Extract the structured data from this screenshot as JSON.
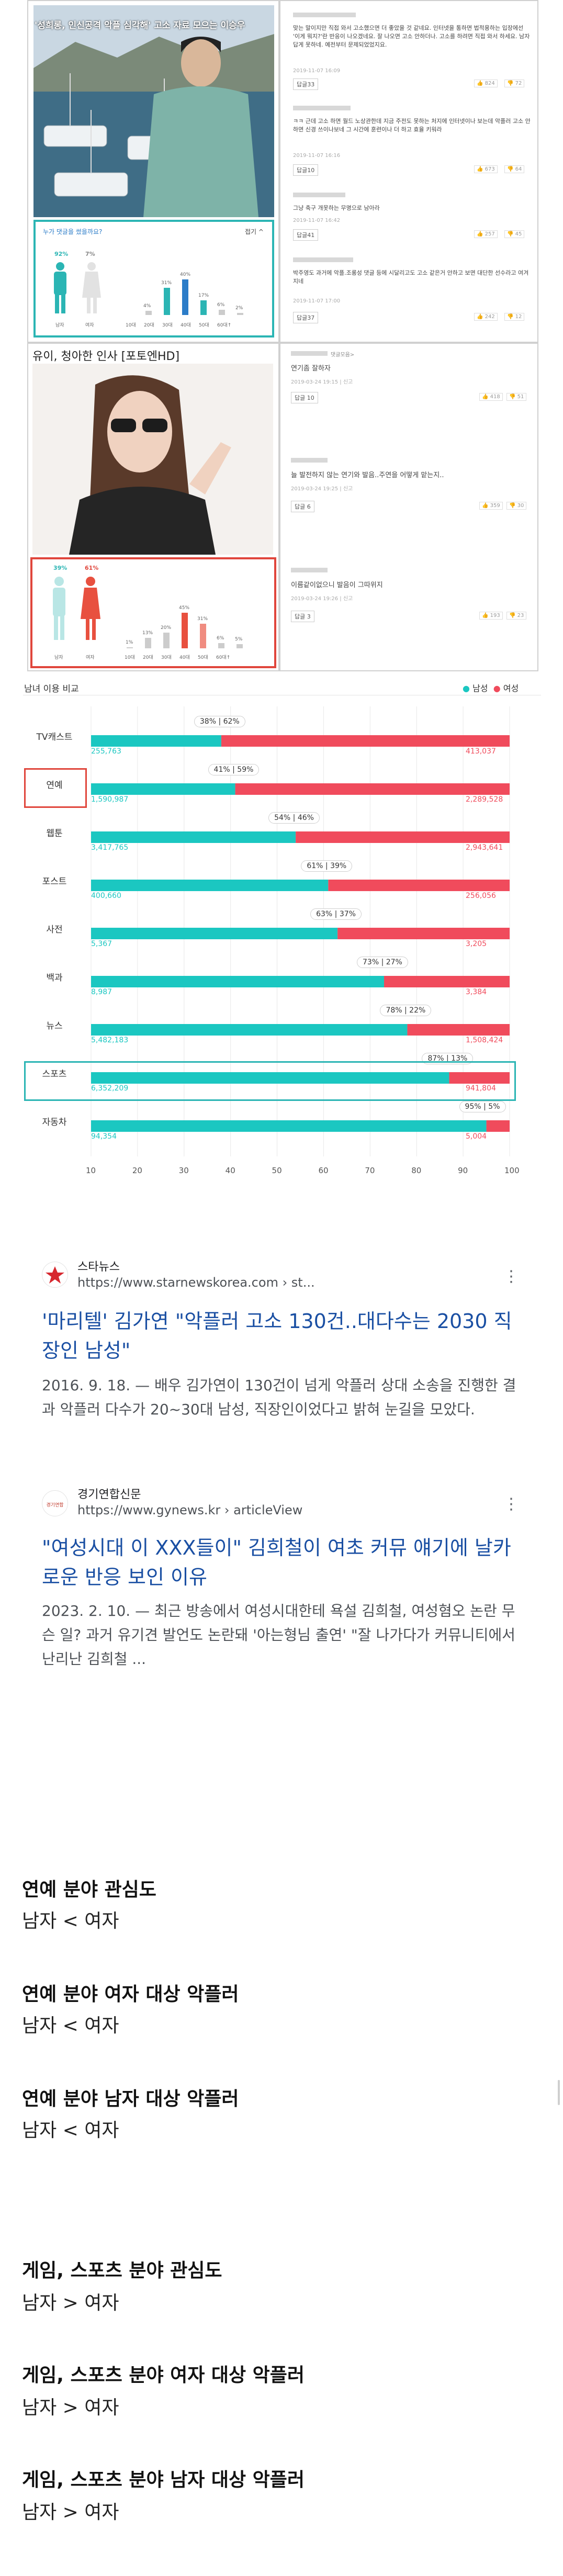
{
  "collage": {
    "news1_title": "'성희롱, 인신공격 악플 심각해' 고소 자료 모으는 이승우",
    "news1_poll_question": "누가 댓글을 썼을까요?",
    "news1_poll_more": "접기 ^",
    "news1_poll": {
      "male_pct": "92%",
      "female_pct": "7%",
      "age_pcts": [
        "",
        "4%",
        "31%",
        "40%",
        "17%",
        "6%",
        "2%"
      ],
      "age_labels": [
        "남자",
        "여자",
        "10대",
        "20대",
        "30대",
        "40대",
        "50대",
        "60대↑"
      ]
    },
    "news1_comments": [
      {
        "text": "맞는 말이지만 직접 와서 고소했으면 더 좋았을 것 같네요. 인터넷을 통하면 법적용하는 입장에선 '이게 뭐지?'란 반응이 나오겠네요. 잘 나오면 고소 안하더나. 고소를 하려면 직접 와서 하세요. 남자답게 못하네. 예전부터 문제되었었지요.",
        "date": "2019-11-07 16:09",
        "up": "824",
        "down": "72"
      },
      {
        "text": "ㅋㅋ 근데 고소 하면 월드 노상관한데 지금 주전도 못하는 처지에 인터넷이나 보는데 악플러 고소 안하면 신경 쓰이나보네 그 시간에 훈련이나 더 하고 효율 키워라",
        "date": "2019-11-07 16:16",
        "up": "673",
        "down": "64"
      },
      {
        "text": "그냥 축구 개못하는 무명으로 남아라",
        "date": "2019-11-07 16:42",
        "up": "257",
        "down": "45"
      },
      {
        "text": "박주영도 과거에 악플.조롱성 댓글 등에 시달리고도 고소 같은거 안하고 보면 대단한 선수라고 여겨지네",
        "date": "2019-11-07 17:00",
        "up": "242",
        "down": "12"
      }
    ],
    "news1_comment_labels": [
      "답글33",
      "답글10",
      "답글41",
      "답글37"
    ],
    "news2_title": "유이, 청아한 인사 [포토엔HD]",
    "news2_poll": {
      "male_pct": "39%",
      "female_pct": "61%",
      "age_pcts": [
        "1%",
        "13%",
        "20%",
        "45%",
        "31%",
        "6%",
        "5%"
      ],
      "age_labels": [
        "남자",
        "여자",
        "10대",
        "20대",
        "30대",
        "40대",
        "50대",
        "60대↑"
      ]
    },
    "news2_comments": [
      {
        "text": "연기좀 잘하자",
        "date": "2019-03-24 19:15",
        "report": "신고",
        "reply": "답글 10",
        "up": "418",
        "down": "51"
      },
      {
        "text": "늘 발전하지 않는 연기와 발음..주연을 어떻게 맡는지..",
        "date": "2019-03-24 19:25",
        "report": "신고",
        "reply": "답글 6",
        "up": "359",
        "down": "30"
      },
      {
        "text": "이름같이없으니 발음이 그따위지",
        "date": "2019-03-24 19:26",
        "report": "신고",
        "reply": "답글 3",
        "up": "193",
        "down": "23"
      }
    ],
    "news2_header": "댓글모음>"
  },
  "chart_data": {
    "type": "bar",
    "title": "남녀 이용 비교",
    "legend": [
      {
        "name": "남성",
        "color": "#1bc7c1"
      },
      {
        "name": "여성",
        "color": "#f04b5c"
      }
    ],
    "legend_position": "top-right",
    "categories": [
      "TV캐스트",
      "연예",
      "웹툰",
      "포스트",
      "사전",
      "백과",
      "뉴스",
      "스포츠",
      "자동차"
    ],
    "male_ratio": [
      38,
      41,
      54,
      61,
      63,
      73,
      78,
      87,
      95
    ],
    "female_ratio": [
      62,
      59,
      46,
      39,
      37,
      27,
      22,
      13,
      5
    ],
    "ratio_labels": [
      "38%62%",
      "41%59%",
      "54%46%",
      "61%39%",
      "63%37%",
      "73%27%",
      "78%22%",
      "87%13%",
      "95%5%"
    ],
    "male_counts": [
      "255,763",
      "1,590,987",
      "3,417,765",
      "400,660",
      "5,367",
      "8,987",
      "5,482,183",
      "6,352,209",
      "94,354"
    ],
    "female_counts": [
      "413,037",
      "2,289,528",
      "2,943,641",
      "256,056",
      "3,205",
      "3,384",
      "1,508,424",
      "941,804",
      "5,004"
    ],
    "x_ticks": [
      "10",
      "20",
      "30",
      "40",
      "50",
      "60",
      "70",
      "80",
      "90",
      "100"
    ],
    "xlim": [
      10,
      100
    ],
    "highlight_red": "연예",
    "highlight_teal": "스포츠",
    "colors": {
      "male": "#1bc7c1",
      "female": "#f04b5c"
    }
  },
  "results": [
    {
      "source": "스타뉴스",
      "url": "https://www.starnewskorea.com › st...",
      "title": "'마리텔' 김가연 \"악플러 고소 130건..대다수는 2030 직장인 남성\"",
      "snippet": "2016. 9. 18. — 배우 김가연이 130건이 넘게 악플러 상대 소송을 진행한 결과 악플러 다수가 20~30대 남성, 직장인이었다고 밝혀 눈길을 모았다.",
      "logo_color": "#d7282f"
    },
    {
      "source": "경기연합신문",
      "url": "https://www.gynews.kr › articleView",
      "title": "\"여성시대 이 XXX들이\" 김희철이 여초 커뮤 얘기에 날카로운 반응 보인 이유",
      "snippet": "2023. 2. 10. — 최근 방송에서 여성시대한테 욕설 김희철, 여성혐오 논란 무슨 일? 과거 유기견 발언도 논란돼 '아는형님 출연' \"잘 나가다가 커뮤니티에서 난리난 김희철 ...",
      "logo_color": "#c0392b"
    }
  ],
  "statements": [
    {
      "heading": "연예 분야 관심도",
      "value": "남자 < 여자"
    },
    {
      "heading": "연예 분야 여자 대상 악플러",
      "value": "남자 < 여자"
    },
    {
      "heading": "연예 분야 남자 대상 악플러",
      "value": "남자 < 여자"
    },
    {
      "heading": "게임, 스포츠 분야 관심도",
      "value": "남자 > 여자"
    },
    {
      "heading": "게임, 스포츠 분야 여자 대상 악플러",
      "value": "남자 > 여자"
    },
    {
      "heading": "게임, 스포츠 분야 남자 대상 악플러",
      "value": "남자 > 여자"
    }
  ]
}
